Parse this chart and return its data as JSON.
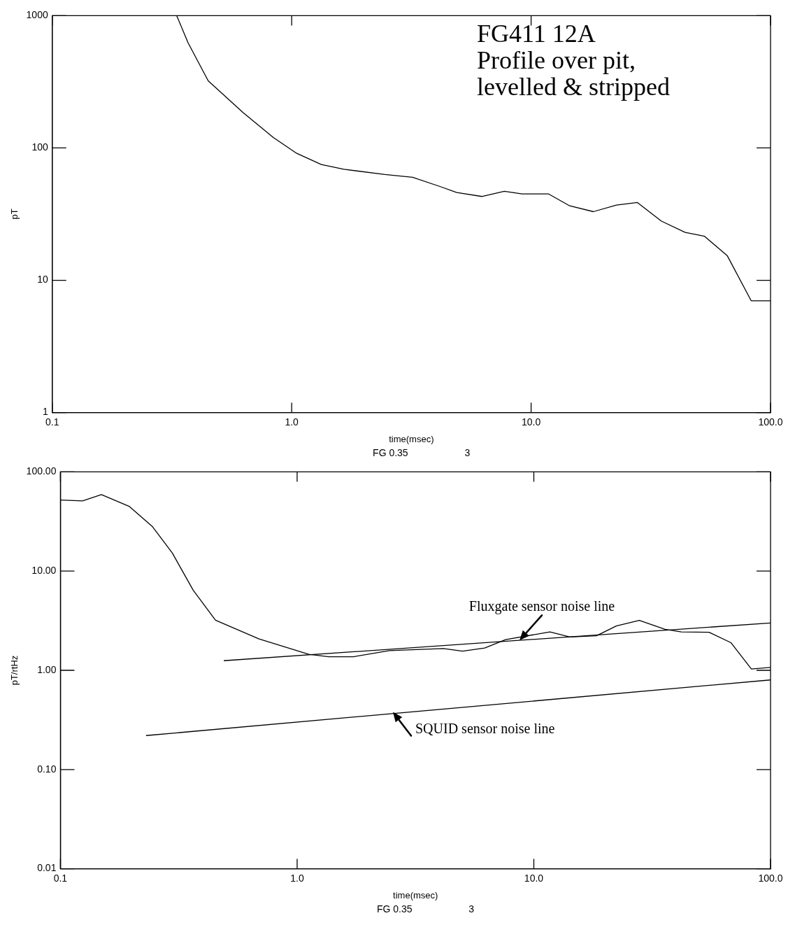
{
  "chart_data": [
    {
      "type": "line",
      "title": "FG411 12A",
      "subtitle": "Profile over pit, levelled & stripped",
      "xlabel": "time(msec)",
      "ylabel": "pT",
      "annotations": [
        "FG 0.35",
        "3"
      ],
      "log": "xy",
      "grid": false,
      "legend": false,
      "marker": "none",
      "line_style": "solid",
      "xlim": [
        0.1,
        100
      ],
      "ylim": [
        1,
        1000
      ],
      "xticks": [
        {
          "value": 0.1,
          "label": "0.1"
        },
        {
          "value": 1,
          "label": "1.0"
        },
        {
          "value": 10,
          "label": "10.0"
        },
        {
          "value": 100,
          "label": "100.0"
        }
      ],
      "yticks": [
        1,
        10,
        100,
        1000
      ],
      "series": [
        {
          "color": "#000000",
          "x": [
            0.331,
            0.369,
            0.448,
            0.627,
            0.725,
            0.838,
            1.05,
            1.33,
            1.65,
            2.45,
            3.2,
            4.18,
            4.89,
            6.22,
            7.73,
            9.16,
            11.8,
            14.5,
            18.2,
            22.7,
            27.8,
            35,
            44,
            53,
            66,
            83,
            100
          ],
          "values": [
            1000,
            625,
            322,
            185,
            149,
            120,
            91,
            75,
            69,
            63,
            60,
            51,
            46,
            43,
            47,
            45,
            45,
            36.5,
            33,
            37,
            38.7,
            28,
            23,
            21.5,
            15.3,
            7,
            7
          ]
        }
      ]
    },
    {
      "type": "line",
      "xlabel": "time(msec)",
      "ylabel": "pT/rtHz",
      "annotations": [
        "FG 0.35",
        "3",
        {
          "text": "Fluxgate sensor noise line",
          "x": 8.7,
          "y": 2.0
        },
        {
          "text": "SQUID sensor noise line",
          "x": 2.54,
          "y": 0.38
        }
      ],
      "log": "xy",
      "grid": false,
      "legend": false,
      "marker": "none",
      "line_style": "solid",
      "xlim": [
        0.1,
        100
      ],
      "ylim": [
        0.01,
        100
      ],
      "xticks": [
        {
          "value": 0.1,
          "label": "0.1"
        },
        {
          "value": 1,
          "label": "1.0"
        },
        {
          "value": 10,
          "label": "10.0"
        },
        {
          "value": 100,
          "label": "100.0"
        }
      ],
      "yticks": [
        {
          "value": 0.01,
          "label": "0.01"
        },
        {
          "value": 0.1,
          "label": "0.10"
        },
        {
          "value": 1,
          "label": "1.00"
        },
        {
          "value": 10,
          "label": "10.00"
        },
        {
          "value": 100,
          "label": "100.00"
        }
      ],
      "series": [
        {
          "color": "#000000",
          "x": [
            0.1,
            0.124,
            0.149,
            0.195,
            0.245,
            0.297,
            0.364,
            0.452,
            0.69,
            1.12,
            1.36,
            1.73,
            2.45,
            4.15,
            5.0,
            6.2,
            7.6,
            11.7,
            14.2,
            18.4,
            22.3,
            27.9,
            35.8,
            42,
            55,
            68,
            83,
            100
          ],
          "values": [
            52,
            51,
            59,
            45,
            28,
            15.2,
            6.4,
            3.2,
            2.07,
            1.45,
            1.37,
            1.37,
            1.58,
            1.66,
            1.56,
            1.68,
            2.04,
            2.44,
            2.17,
            2.23,
            2.8,
            3.19,
            2.59,
            2.44,
            2.42,
            1.9,
            1.03,
            1.07
          ]
        },
        {
          "type": "line",
          "color": "#000000",
          "x": [
            0.49,
            100
          ],
          "values": [
            1.25,
            3.0
          ]
        },
        {
          "type": "line",
          "color": "#000000",
          "x": [
            0.23,
            100
          ],
          "values": [
            0.22,
            0.8
          ]
        }
      ]
    }
  ]
}
